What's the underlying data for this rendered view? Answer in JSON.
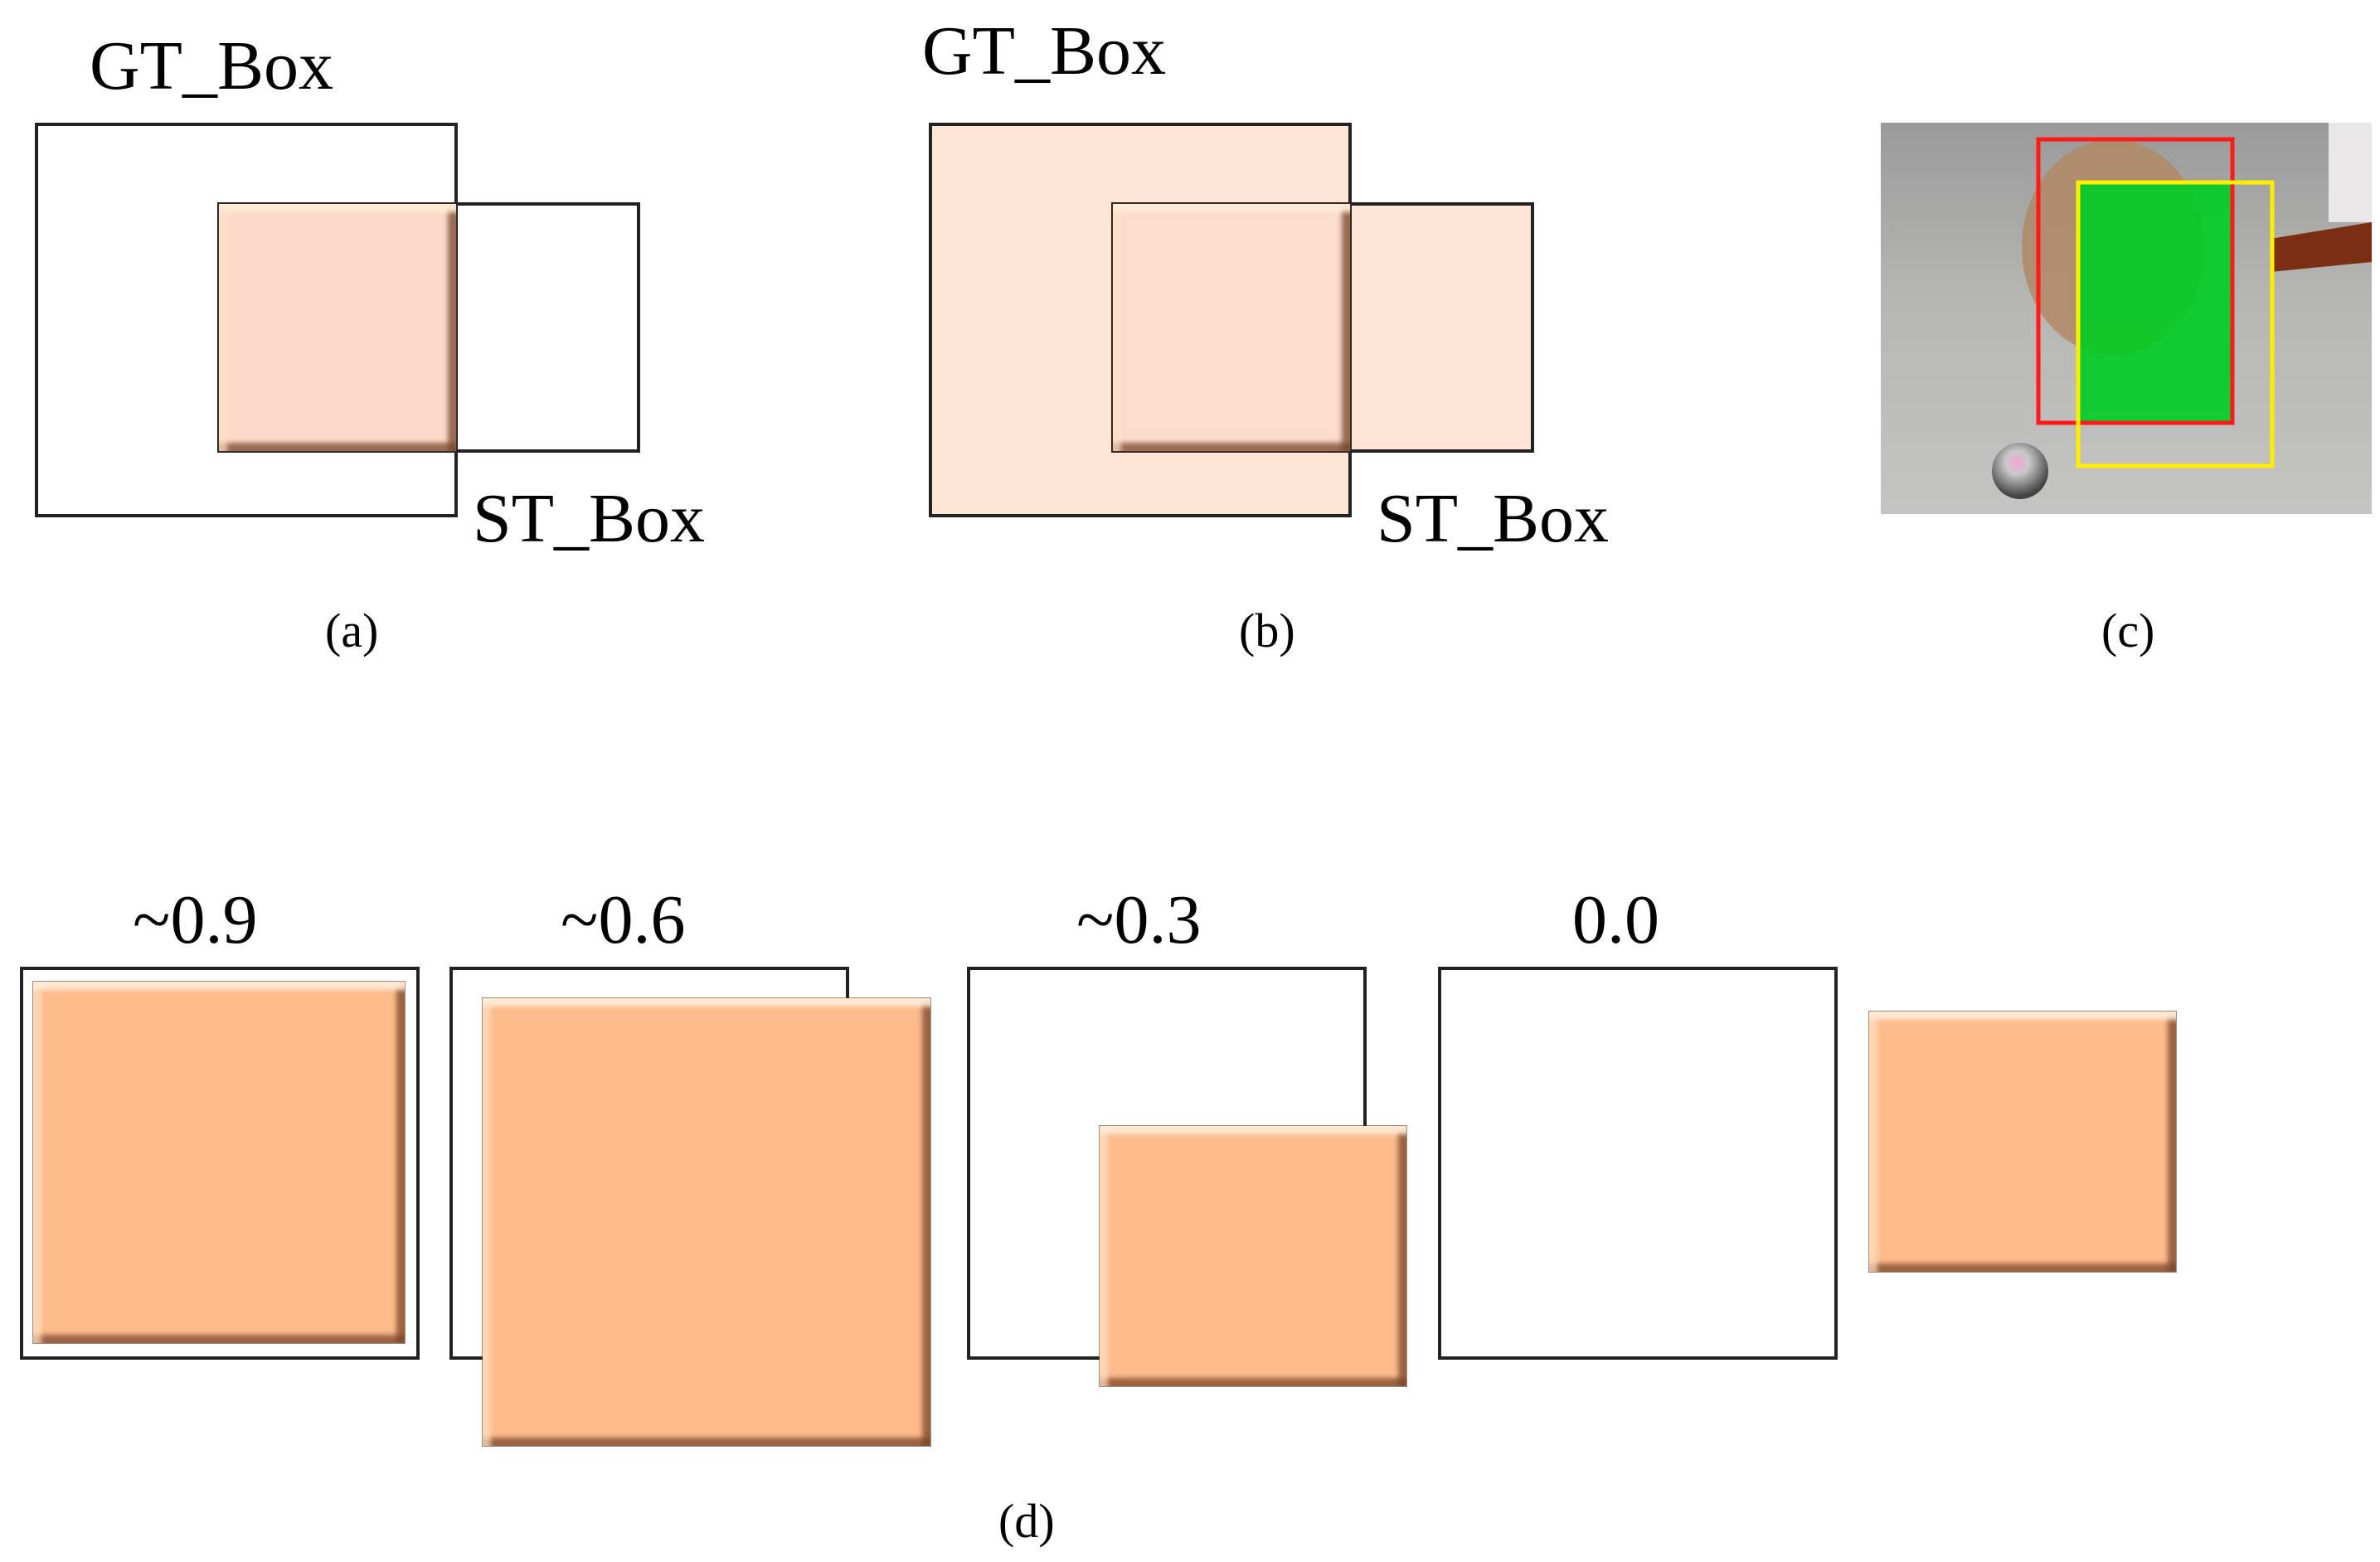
{
  "panel_a": {
    "gt_label": "GT_Box",
    "st_label": "ST_Box",
    "caption": "(a)"
  },
  "panel_b": {
    "gt_label": "GT_Box",
    "st_label": "ST_Box",
    "caption": "(b)"
  },
  "panel_c": {
    "caption": "(c)",
    "box_colors": {
      "ground_truth": "#ff1a1a",
      "tracker": "#ffee00",
      "overlap": "#00cc22"
    }
  },
  "panel_d": {
    "caption": "(d)",
    "scores": [
      "~0.9",
      "~0.6",
      "~0.3",
      "0.0"
    ]
  },
  "colors": {
    "tile": "#fdbb8c",
    "tile_pale": "#fcdacb",
    "union_fill": "#fee5d6",
    "outline": "#222222"
  }
}
